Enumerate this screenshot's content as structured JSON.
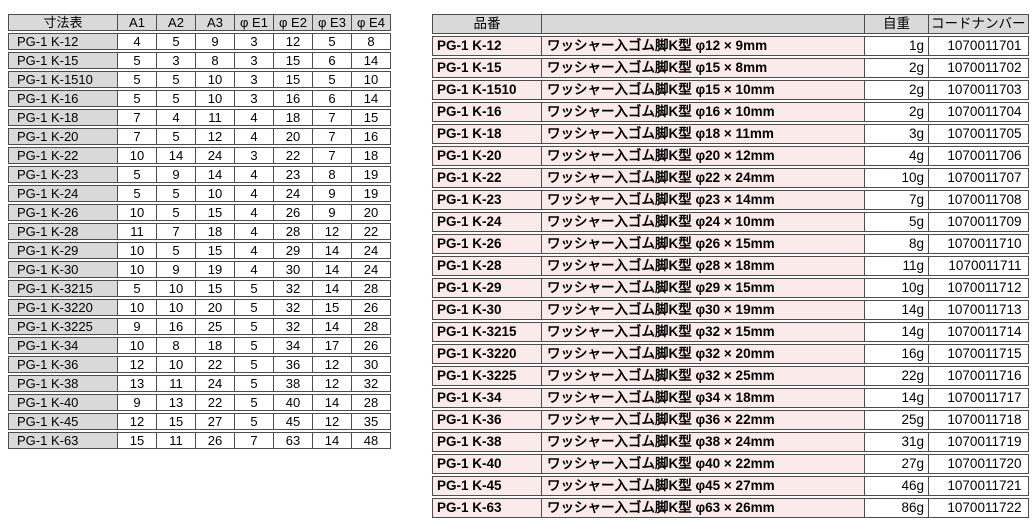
{
  "colors": {
    "header_bg": "#d9d9d9",
    "row_pink_bg": "#fbeaea",
    "border": "#4d4d4d",
    "text": "#000000"
  },
  "left_table": {
    "title_header": "寸法表",
    "col_headers": [
      "A1",
      "A2",
      "A3",
      "φ E1",
      "φ E2",
      "φ E3",
      "φ E4"
    ],
    "rows": [
      {
        "part": "PG-1 K-12",
        "values": [
          "4",
          "5",
          "9",
          "3",
          "12",
          "5",
          "8"
        ]
      },
      {
        "part": "PG-1 K-15",
        "values": [
          "5",
          "3",
          "8",
          "3",
          "15",
          "6",
          "14"
        ]
      },
      {
        "part": "PG-1 K-1510",
        "values": [
          "5",
          "5",
          "10",
          "3",
          "15",
          "5",
          "10"
        ]
      },
      {
        "part": "PG-1 K-16",
        "values": [
          "5",
          "5",
          "10",
          "3",
          "16",
          "6",
          "14"
        ]
      },
      {
        "part": "PG-1 K-18",
        "values": [
          "7",
          "4",
          "11",
          "4",
          "18",
          "7",
          "15"
        ]
      },
      {
        "part": "PG-1 K-20",
        "values": [
          "7",
          "5",
          "12",
          "4",
          "20",
          "7",
          "16"
        ]
      },
      {
        "part": "PG-1 K-22",
        "values": [
          "10",
          "14",
          "24",
          "3",
          "22",
          "7",
          "18"
        ]
      },
      {
        "part": "PG-1 K-23",
        "values": [
          "5",
          "9",
          "14",
          "4",
          "23",
          "8",
          "19"
        ]
      },
      {
        "part": "PG-1 K-24",
        "values": [
          "5",
          "5",
          "10",
          "4",
          "24",
          "9",
          "19"
        ]
      },
      {
        "part": "PG-1 K-26",
        "values": [
          "10",
          "5",
          "15",
          "4",
          "26",
          "9",
          "20"
        ]
      },
      {
        "part": "PG-1 K-28",
        "values": [
          "11",
          "7",
          "18",
          "4",
          "28",
          "12",
          "22"
        ]
      },
      {
        "part": "PG-1 K-29",
        "values": [
          "10",
          "5",
          "15",
          "4",
          "29",
          "14",
          "24"
        ]
      },
      {
        "part": "PG-1 K-30",
        "values": [
          "10",
          "9",
          "19",
          "4",
          "30",
          "14",
          "24"
        ]
      },
      {
        "part": "PG-1 K-3215",
        "values": [
          "5",
          "10",
          "15",
          "5",
          "32",
          "14",
          "28"
        ]
      },
      {
        "part": "PG-1 K-3220",
        "values": [
          "10",
          "10",
          "20",
          "5",
          "32",
          "15",
          "26"
        ]
      },
      {
        "part": "PG-1 K-3225",
        "values": [
          "9",
          "16",
          "25",
          "5",
          "32",
          "14",
          "28"
        ]
      },
      {
        "part": "PG-1 K-34",
        "values": [
          "10",
          "8",
          "18",
          "5",
          "34",
          "17",
          "26"
        ]
      },
      {
        "part": "PG-1 K-36",
        "values": [
          "12",
          "10",
          "22",
          "5",
          "36",
          "12",
          "30"
        ]
      },
      {
        "part": "PG-1 K-38",
        "values": [
          "13",
          "11",
          "24",
          "5",
          "38",
          "12",
          "32"
        ]
      },
      {
        "part": "PG-1 K-40",
        "values": [
          "9",
          "13",
          "22",
          "5",
          "40",
          "14",
          "28"
        ]
      },
      {
        "part": "PG-1 K-45",
        "values": [
          "12",
          "15",
          "27",
          "5",
          "45",
          "12",
          "35"
        ]
      },
      {
        "part": "PG-1 K-63",
        "values": [
          "15",
          "11",
          "26",
          "7",
          "63",
          "14",
          "48"
        ]
      }
    ]
  },
  "right_table": {
    "headers": {
      "part": "品番",
      "desc": "",
      "weight": "自重",
      "code": "コードナンバー"
    },
    "rows": [
      {
        "part": "PG-1 K-12",
        "desc": "ワッシャー入ゴム脚K型 φ12 × 9mm",
        "weight": "1g",
        "code": "1070011701"
      },
      {
        "part": "PG-1 K-15",
        "desc": "ワッシャー入ゴム脚K型 φ15 × 8mm",
        "weight": "2g",
        "code": "1070011702"
      },
      {
        "part": "PG-1 K-1510",
        "desc": "ワッシャー入ゴム脚K型 φ15 × 10mm",
        "weight": "2g",
        "code": "1070011703"
      },
      {
        "part": "PG-1 K-16",
        "desc": "ワッシャー入ゴム脚K型 φ16 × 10mm",
        "weight": "2g",
        "code": "1070011704"
      },
      {
        "part": "PG-1 K-18",
        "desc": "ワッシャー入ゴム脚K型 φ18 × 11mm",
        "weight": "3g",
        "code": "1070011705"
      },
      {
        "part": "PG-1 K-20",
        "desc": "ワッシャー入ゴム脚K型 φ20 × 12mm",
        "weight": "4g",
        "code": "1070011706"
      },
      {
        "part": "PG-1 K-22",
        "desc": "ワッシャー入ゴム脚K型 φ22 × 24mm",
        "weight": "10g",
        "code": "1070011707"
      },
      {
        "part": "PG-1 K-23",
        "desc": "ワッシャー入ゴム脚K型 φ23 × 14mm",
        "weight": "7g",
        "code": "1070011708"
      },
      {
        "part": "PG-1 K-24",
        "desc": "ワッシャー入ゴム脚K型 φ24 × 10mm",
        "weight": "5g",
        "code": "1070011709"
      },
      {
        "part": "PG-1 K-26",
        "desc": "ワッシャー入ゴム脚K型 φ26 × 15mm",
        "weight": "8g",
        "code": "1070011710"
      },
      {
        "part": "PG-1 K-28",
        "desc": "ワッシャー入ゴム脚K型 φ28 × 18mm",
        "weight": "11g",
        "code": "1070011711"
      },
      {
        "part": "PG-1 K-29",
        "desc": "ワッシャー入ゴム脚K型 φ29 × 15mm",
        "weight": "10g",
        "code": "1070011712"
      },
      {
        "part": "PG-1 K-30",
        "desc": "ワッシャー入ゴム脚K型 φ30 × 19mm",
        "weight": "14g",
        "code": "1070011713"
      },
      {
        "part": "PG-1 K-3215",
        "desc": "ワッシャー入ゴム脚K型 φ32 × 15mm",
        "weight": "14g",
        "code": "1070011714"
      },
      {
        "part": "PG-1 K-3220",
        "desc": "ワッシャー入ゴム脚K型 φ32 × 20mm",
        "weight": "16g",
        "code": "1070011715"
      },
      {
        "part": "PG-1 K-3225",
        "desc": "ワッシャー入ゴム脚K型 φ32 × 25mm",
        "weight": "22g",
        "code": "1070011716"
      },
      {
        "part": "PG-1 K-34",
        "desc": "ワッシャー入ゴム脚K型 φ34 × 18mm",
        "weight": "14g",
        "code": "1070011717"
      },
      {
        "part": "PG-1 K-36",
        "desc": "ワッシャー入ゴム脚K型 φ36 × 22mm",
        "weight": "25g",
        "code": "1070011718"
      },
      {
        "part": "PG-1 K-38",
        "desc": "ワッシャー入ゴム脚K型 φ38 × 24mm",
        "weight": "31g",
        "code": "1070011719"
      },
      {
        "part": "PG-1 K-40",
        "desc": "ワッシャー入ゴム脚K型 φ40 × 22mm",
        "weight": "27g",
        "code": "1070011720"
      },
      {
        "part": "PG-1 K-45",
        "desc": "ワッシャー入ゴム脚K型 φ45 × 27mm",
        "weight": "46g",
        "code": "1070011721"
      },
      {
        "part": "PG-1 K-63",
        "desc": "ワッシャー入ゴム脚K型 φ63 × 26mm",
        "weight": "86g",
        "code": "1070011722"
      }
    ]
  }
}
